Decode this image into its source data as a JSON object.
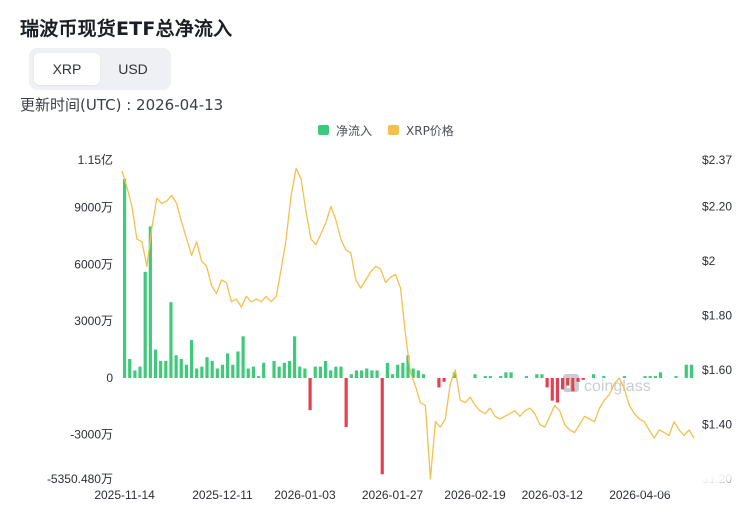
{
  "title": "瑞波币现货ETF总净流入",
  "toggle": {
    "options": [
      "XRP",
      "USD"
    ],
    "selected": "XRP"
  },
  "updated": "更新时间(UTC) : 2026-04-13",
  "legend": {
    "net_inflow": {
      "label": "净流入",
      "color": "#3ec97b"
    },
    "price": {
      "label": "XRP价格",
      "color": "#f2c14e"
    }
  },
  "watermark": "coinglass",
  "colors": {
    "positive": "#3ec97b",
    "negative": "#e5404f",
    "price": "#f2c14e",
    "axis_text": "#2b2f36"
  },
  "chart_data": {
    "type": "bar",
    "left_ticks": [
      {
        "label": "1.15亿",
        "value": 115000000
      },
      {
        "label": "9000万",
        "value": 90000000
      },
      {
        "label": "6000万",
        "value": 60000000
      },
      {
        "label": "3000万",
        "value": 30000000
      },
      {
        "label": "0",
        "value": 0
      },
      {
        "label": "-3000万",
        "value": -30000000
      },
      {
        "label": "-5350.480万",
        "value": -53504800
      }
    ],
    "right_ticks": [
      {
        "label": "$2.37",
        "value": 2.37
      },
      {
        "label": "$2.20",
        "value": 2.2
      },
      {
        "label": "$2",
        "value": 2.0
      },
      {
        "label": "$1.80",
        "value": 1.8
      },
      {
        "label": "$1.60",
        "value": 1.6
      },
      {
        "label": "$1.40",
        "value": 1.4
      },
      {
        "label": "$1.20",
        "value": 1.2
      }
    ],
    "x_ticks": [
      {
        "label": "2025-11-14",
        "index": 0
      },
      {
        "label": "2025-12-11",
        "index": 19
      },
      {
        "label": "2026-01-03",
        "index": 35
      },
      {
        "label": "2026-01-27",
        "index": 52
      },
      {
        "label": "2026-02-19",
        "index": 68
      },
      {
        "label": "2026-03-12",
        "index": 83
      },
      {
        "label": "2026-04-06",
        "index": 100
      }
    ],
    "ylim_flow": [
      -53504800,
      115000000
    ],
    "ylim_price": [
      1.2,
      2.37
    ],
    "series": [
      {
        "name": "净流入",
        "values": [
          105,
          10,
          4,
          6,
          56,
          80,
          15,
          9,
          9,
          40,
          12,
          10,
          7,
          20,
          5,
          6,
          11,
          9,
          5,
          7,
          13,
          7,
          14,
          22,
          5,
          6,
          1,
          8,
          0,
          9,
          6,
          8,
          9,
          22,
          6,
          5,
          -17,
          6,
          6,
          9,
          4,
          6,
          6,
          -26,
          2,
          4,
          4,
          5,
          4,
          4,
          -51,
          8,
          2,
          7,
          8,
          12,
          5,
          4,
          2,
          0,
          0,
          -5,
          -2,
          0,
          3,
          0,
          0,
          0,
          2,
          0,
          1,
          1,
          0,
          1,
          3,
          3,
          0,
          0,
          1,
          0,
          2,
          2,
          -5,
          -12,
          -13,
          -6,
          -4,
          -7,
          -2,
          -1,
          0,
          2,
          0,
          1,
          0,
          0,
          0,
          1,
          0,
          0,
          0,
          1,
          1,
          1,
          3,
          0,
          0,
          1,
          0,
          7,
          7
        ]
      },
      {
        "name": "XRP价格",
        "values": [
          2.33,
          2.27,
          2.2,
          2.08,
          2.07,
          1.98,
          2.12,
          2.23,
          2.21,
          2.22,
          2.24,
          2.21,
          2.14,
          2.08,
          2.02,
          2.07,
          2.0,
          1.98,
          1.91,
          1.88,
          1.93,
          1.92,
          1.85,
          1.86,
          1.83,
          1.87,
          1.85,
          1.86,
          1.85,
          1.87,
          1.85,
          1.87,
          1.97,
          2.08,
          2.24,
          2.34,
          2.3,
          2.18,
          2.08,
          2.06,
          2.1,
          2.14,
          2.2,
          2.15,
          2.08,
          2.04,
          2.03,
          1.93,
          1.9,
          1.93,
          1.96,
          1.98,
          1.97,
          1.92,
          1.94,
          1.95,
          1.9,
          1.73,
          1.59,
          1.54,
          1.48,
          1.47,
          1.2,
          1.41,
          1.39,
          1.42,
          1.55,
          1.6,
          1.49,
          1.48,
          1.5,
          1.47,
          1.45,
          1.44,
          1.46,
          1.43,
          1.42,
          1.43,
          1.44,
          1.45,
          1.43,
          1.45,
          1.46,
          1.44,
          1.4,
          1.39,
          1.43,
          1.47,
          1.45,
          1.4,
          1.38,
          1.37,
          1.4,
          1.43,
          1.42,
          1.41,
          1.46,
          1.49,
          1.51,
          1.55,
          1.57,
          1.53,
          1.47,
          1.44,
          1.42,
          1.41,
          1.38,
          1.35,
          1.38,
          1.37,
          1.36,
          1.41,
          1.38,
          1.36,
          1.38,
          1.35
        ]
      }
    ]
  }
}
